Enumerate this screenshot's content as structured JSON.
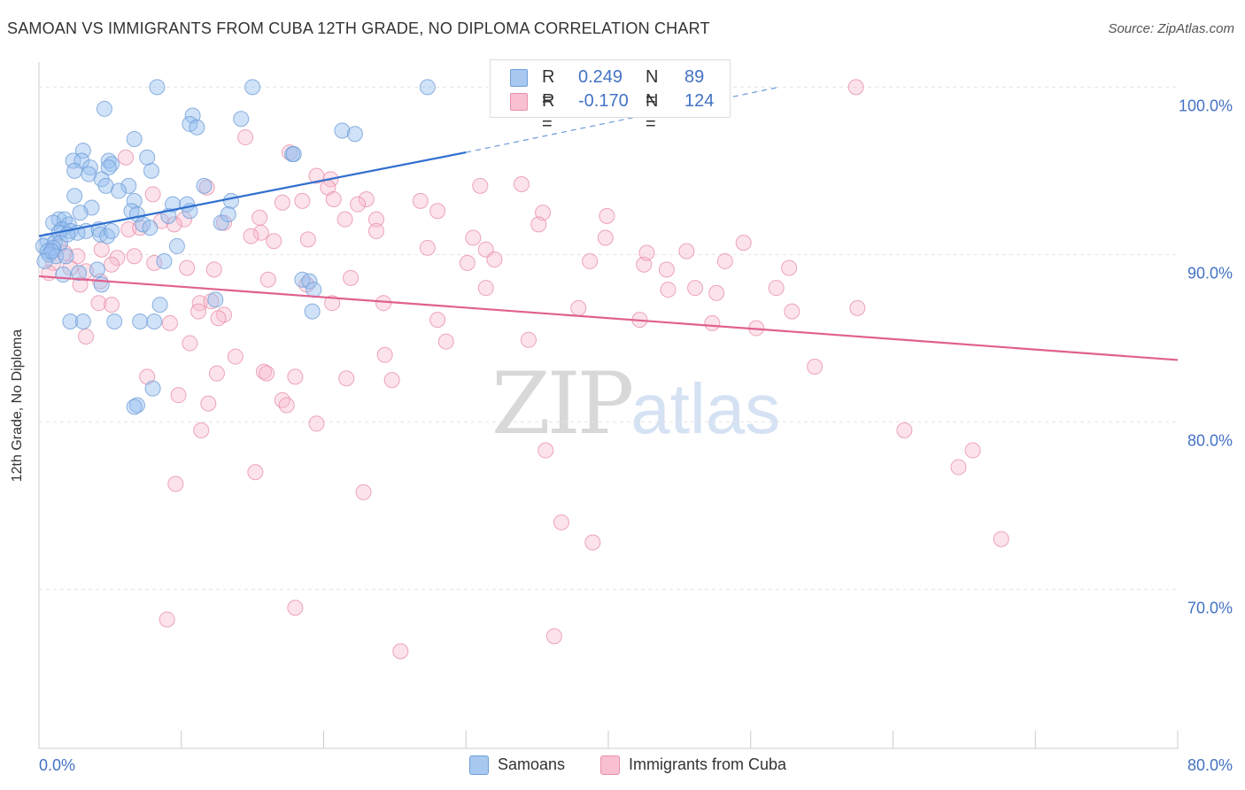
{
  "title": "SAMOAN VS IMMIGRANTS FROM CUBA 12TH GRADE, NO DIPLOMA CORRELATION CHART",
  "source": "Source: ZipAtlas.com",
  "watermark": {
    "zip": "ZIP",
    "atlas": "atlas"
  },
  "legend": {
    "rows": [
      {
        "r_key": "R =",
        "r_val": "0.249",
        "n_key": "N =",
        "n_val": "89",
        "fill": "#a8c8f0",
        "stroke": "#6f9fd8"
      },
      {
        "r_key": "R =",
        "r_val": "-0.170",
        "n_key": "N =",
        "n_val": "124",
        "fill": "#f8c0d0",
        "stroke": "#e890a8"
      }
    ]
  },
  "bottom_legend": [
    {
      "label": "Samoans",
      "fill": "#a8c8f0",
      "stroke": "#6f9fd8"
    },
    {
      "label": "Immigrants from Cuba",
      "fill": "#f8c0d0",
      "stroke": "#e890a8"
    }
  ],
  "chart_data": {
    "type": "scatter",
    "title": "SAMOAN VS IMMIGRANTS FROM CUBA 12TH GRADE, NO DIPLOMA CORRELATION CHART",
    "ylabel": "12th Grade, No Diploma",
    "xlim": [
      0,
      80
    ],
    "ylim": [
      60.5,
      101.5
    ],
    "x_tick_labels": [
      "0.0%",
      "80.0%"
    ],
    "y_ticks": [
      70,
      80,
      90,
      100
    ],
    "y_tick_labels": [
      "70.0%",
      "80.0%",
      "90.0%",
      "100.0%"
    ],
    "grid": true,
    "colors": {
      "samoans": "#6f9fd8",
      "cuba": "#e890a8",
      "samoans_line": "#2f6fcf",
      "cuba_line": "#e0608f",
      "tick_label": "#4472c4"
    },
    "series": [
      {
        "name": "Samoans",
        "r": 0.249,
        "n": 89,
        "trend": {
          "x0": 0,
          "y0": 91.1,
          "x1": 30,
          "y1": 96.1,
          "dashed_to_x": 52,
          "dashed_to_y": 100.0
        },
        "points": [
          [
            8.3,
            100.0
          ],
          [
            15.0,
            100.0
          ],
          [
            27.3,
            100.0
          ],
          [
            4.6,
            98.7
          ],
          [
            10.8,
            98.3
          ],
          [
            14.2,
            98.1
          ],
          [
            10.6,
            97.8
          ],
          [
            11.1,
            97.6
          ],
          [
            21.3,
            97.4
          ],
          [
            22.2,
            97.2
          ],
          [
            6.7,
            96.9
          ],
          [
            3.1,
            96.2
          ],
          [
            7.6,
            95.8
          ],
          [
            17.8,
            96.0
          ],
          [
            2.4,
            95.6
          ],
          [
            3.0,
            95.6
          ],
          [
            4.9,
            95.6
          ],
          [
            5.1,
            95.4
          ],
          [
            2.5,
            95.0
          ],
          [
            3.6,
            95.2
          ],
          [
            4.9,
            95.2
          ],
          [
            7.9,
            95.0
          ],
          [
            3.5,
            94.8
          ],
          [
            4.4,
            94.5
          ],
          [
            4.7,
            94.1
          ],
          [
            6.3,
            94.1
          ],
          [
            11.6,
            94.1
          ],
          [
            5.6,
            93.8
          ],
          [
            2.5,
            93.5
          ],
          [
            6.7,
            93.2
          ],
          [
            13.5,
            93.2
          ],
          [
            10.4,
            93.0
          ],
          [
            3.7,
            92.8
          ],
          [
            6.5,
            92.6
          ],
          [
            10.6,
            92.6
          ],
          [
            6.9,
            92.4
          ],
          [
            9.1,
            92.3
          ],
          [
            1.4,
            92.1
          ],
          [
            1.8,
            92.1
          ],
          [
            1.0,
            91.9
          ],
          [
            2.1,
            91.8
          ],
          [
            12.8,
            91.9
          ],
          [
            7.3,
            91.8
          ],
          [
            7.8,
            91.6
          ],
          [
            1.6,
            91.5
          ],
          [
            2.2,
            91.4
          ],
          [
            3.3,
            91.4
          ],
          [
            4.2,
            91.5
          ],
          [
            1.4,
            91.3
          ],
          [
            2.7,
            91.3
          ],
          [
            4.3,
            91.2
          ],
          [
            4.8,
            91.1
          ],
          [
            0.6,
            90.8
          ],
          [
            1.1,
            90.7
          ],
          [
            1.5,
            90.7
          ],
          [
            0.3,
            90.5
          ],
          [
            1.0,
            90.4
          ],
          [
            0.6,
            90.2
          ],
          [
            0.7,
            90.0
          ],
          [
            9.7,
            90.5
          ],
          [
            1.2,
            89.9
          ],
          [
            0.4,
            89.6
          ],
          [
            8.8,
            89.6
          ],
          [
            4.1,
            89.1
          ],
          [
            1.7,
            88.8
          ],
          [
            2.8,
            88.9
          ],
          [
            18.5,
            88.5
          ],
          [
            19.0,
            88.4
          ],
          [
            4.4,
            88.2
          ],
          [
            12.4,
            87.3
          ],
          [
            8.5,
            87.0
          ],
          [
            19.3,
            87.9
          ],
          [
            19.2,
            86.6
          ],
          [
            2.2,
            86.0
          ],
          [
            3.1,
            86.0
          ],
          [
            5.3,
            86.0
          ],
          [
            7.1,
            86.0
          ],
          [
            8.1,
            86.0
          ],
          [
            8.0,
            82.0
          ],
          [
            6.9,
            81.0
          ],
          [
            6.7,
            80.9
          ],
          [
            1.9,
            89.9
          ],
          [
            2.0,
            91.2
          ],
          [
            0.9,
            90.2
          ],
          [
            5.1,
            91.4
          ],
          [
            9.4,
            93.0
          ],
          [
            17.9,
            96.0
          ],
          [
            13.3,
            92.4
          ],
          [
            2.9,
            92.5
          ]
        ]
      },
      {
        "name": "Immigrants from Cuba",
        "r": -0.17,
        "n": 124,
        "trend": {
          "x0": 0,
          "y0": 88.7,
          "x1": 80,
          "y1": 83.7
        },
        "points": [
          [
            57.4,
            100.0
          ],
          [
            14.5,
            97.0
          ],
          [
            17.6,
            96.1
          ],
          [
            6.1,
            95.8
          ],
          [
            20.5,
            94.5
          ],
          [
            20.3,
            94.0
          ],
          [
            31.0,
            94.1
          ],
          [
            33.9,
            94.2
          ],
          [
            11.8,
            94.0
          ],
          [
            8.0,
            93.6
          ],
          [
            18.5,
            93.2
          ],
          [
            20.7,
            93.3
          ],
          [
            23.0,
            93.3
          ],
          [
            26.8,
            93.2
          ],
          [
            22.4,
            93.0
          ],
          [
            28.0,
            92.6
          ],
          [
            35.4,
            92.5
          ],
          [
            39.9,
            92.3
          ],
          [
            15.5,
            92.2
          ],
          [
            10.2,
            92.1
          ],
          [
            8.6,
            92.0
          ],
          [
            9.5,
            91.8
          ],
          [
            13.0,
            91.9
          ],
          [
            23.7,
            92.1
          ],
          [
            35.1,
            91.8
          ],
          [
            6.3,
            91.5
          ],
          [
            7.1,
            91.6
          ],
          [
            15.6,
            91.3
          ],
          [
            14.9,
            91.1
          ],
          [
            23.7,
            91.4
          ],
          [
            18.9,
            90.9
          ],
          [
            30.5,
            91.0
          ],
          [
            39.8,
            91.0
          ],
          [
            49.5,
            90.7
          ],
          [
            16.5,
            90.8
          ],
          [
            27.3,
            90.4
          ],
          [
            31.4,
            90.3
          ],
          [
            32.0,
            89.7
          ],
          [
            4.4,
            90.3
          ],
          [
            1.8,
            90.1
          ],
          [
            2.7,
            89.9
          ],
          [
            5.5,
            89.8
          ],
          [
            8.1,
            89.5
          ],
          [
            6.7,
            89.9
          ],
          [
            30.1,
            89.5
          ],
          [
            38.7,
            89.6
          ],
          [
            42.5,
            89.4
          ],
          [
            42.7,
            90.1
          ],
          [
            48.2,
            89.6
          ],
          [
            1.0,
            89.5
          ],
          [
            2.2,
            89.2
          ],
          [
            3.3,
            89.0
          ],
          [
            5.1,
            89.4
          ],
          [
            0.7,
            88.9
          ],
          [
            10.4,
            89.2
          ],
          [
            12.3,
            89.1
          ],
          [
            16.1,
            88.5
          ],
          [
            21.9,
            88.6
          ],
          [
            44.1,
            89.1
          ],
          [
            52.7,
            89.2
          ],
          [
            4.3,
            88.4
          ],
          [
            2.9,
            88.2
          ],
          [
            18.8,
            88.2
          ],
          [
            31.4,
            88.0
          ],
          [
            51.8,
            88.0
          ],
          [
            46.1,
            88.0
          ],
          [
            47.6,
            87.7
          ],
          [
            44.2,
            87.9
          ],
          [
            4.2,
            87.1
          ],
          [
            5.1,
            87.0
          ],
          [
            11.3,
            87.1
          ],
          [
            12.1,
            87.2
          ],
          [
            20.6,
            87.1
          ],
          [
            24.2,
            87.1
          ],
          [
            37.9,
            86.8
          ],
          [
            57.5,
            86.8
          ],
          [
            11.2,
            86.6
          ],
          [
            13.0,
            86.4
          ],
          [
            12.6,
            86.2
          ],
          [
            52.9,
            86.6
          ],
          [
            28.0,
            86.1
          ],
          [
            42.2,
            86.1
          ],
          [
            47.3,
            85.9
          ],
          [
            9.2,
            85.9
          ],
          [
            50.4,
            85.6
          ],
          [
            3.3,
            85.1
          ],
          [
            28.6,
            84.8
          ],
          [
            34.4,
            84.9
          ],
          [
            10.6,
            84.7
          ],
          [
            13.8,
            83.9
          ],
          [
            24.3,
            84.0
          ],
          [
            15.8,
            83.0
          ],
          [
            7.6,
            82.7
          ],
          [
            12.5,
            82.9
          ],
          [
            16.0,
            82.9
          ],
          [
            18.0,
            82.7
          ],
          [
            21.6,
            82.6
          ],
          [
            24.8,
            82.5
          ],
          [
            54.5,
            83.3
          ],
          [
            9.8,
            81.6
          ],
          [
            17.1,
            81.3
          ],
          [
            11.9,
            81.1
          ],
          [
            17.4,
            81.0
          ],
          [
            19.5,
            79.9
          ],
          [
            11.4,
            79.5
          ],
          [
            60.8,
            79.5
          ],
          [
            35.6,
            78.3
          ],
          [
            65.6,
            78.3
          ],
          [
            64.6,
            77.3
          ],
          [
            15.2,
            77.0
          ],
          [
            9.6,
            76.3
          ],
          [
            22.8,
            75.8
          ],
          [
            36.7,
            74.0
          ],
          [
            38.9,
            72.8
          ],
          [
            67.6,
            73.0
          ],
          [
            9.0,
            68.2
          ],
          [
            18.0,
            68.9
          ],
          [
            36.2,
            67.2
          ],
          [
            25.4,
            66.3
          ],
          [
            21.5,
            92.1
          ],
          [
            19.5,
            94.7
          ],
          [
            17.1,
            93.1
          ],
          [
            1.4,
            90.5
          ],
          [
            45.5,
            90.2
          ]
        ]
      }
    ]
  }
}
